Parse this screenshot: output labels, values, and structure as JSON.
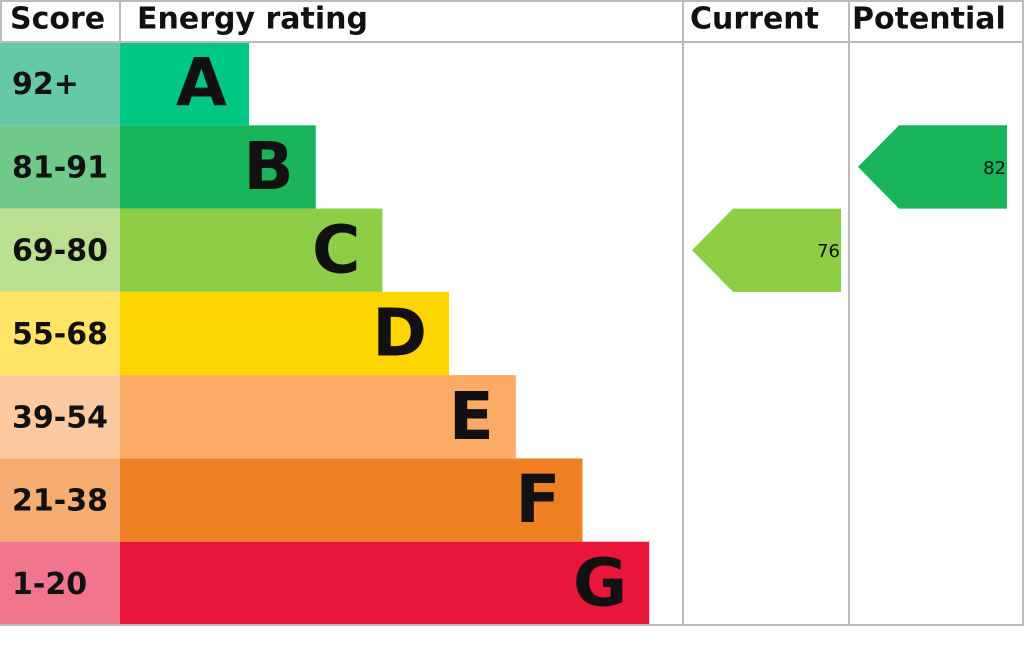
{
  "header": {
    "score": "Score",
    "rating": "Energy rating",
    "current": "Current",
    "potential": "Potential"
  },
  "bands": [
    {
      "score": "92+",
      "letter": "A"
    },
    {
      "score": "81-91",
      "letter": "B"
    },
    {
      "score": "69-80",
      "letter": "C"
    },
    {
      "score": "55-68",
      "letter": "D"
    },
    {
      "score": "39-54",
      "letter": "E"
    },
    {
      "score": "21-38",
      "letter": "F"
    },
    {
      "score": "1-20",
      "letter": "G"
    }
  ],
  "current": 76,
  "potential": 82
}
